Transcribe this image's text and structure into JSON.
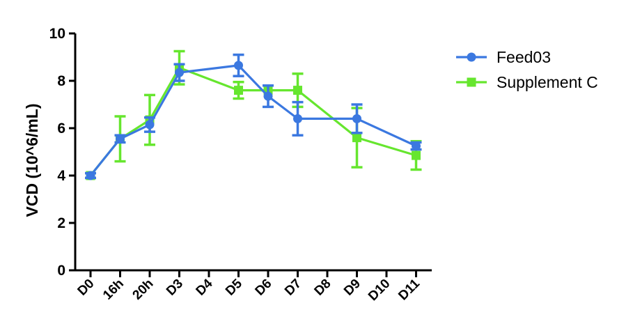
{
  "chart_data": {
    "type": "line",
    "xlabel": "",
    "ylabel": "VCD (10^6/mL)",
    "ylim": [
      0,
      10
    ],
    "yticks": [
      0,
      2,
      4,
      6,
      8,
      10
    ],
    "categories": [
      "D0",
      "16h",
      "20h",
      "D3",
      "D4",
      "D5",
      "D6",
      "D7",
      "D8",
      "D9",
      "D10",
      "D11"
    ],
    "legend_position": "top-right",
    "grid": false,
    "series": [
      {
        "name": "Supplement C",
        "color": "#66e62e",
        "marker": "square",
        "points": [
          {
            "category": "D0",
            "value": 4.0,
            "error": 0.1
          },
          {
            "category": "16h",
            "value": 5.55,
            "error": 0.95
          },
          {
            "category": "20h",
            "value": 6.35,
            "error": 1.05
          },
          {
            "category": "D3",
            "value": 8.55,
            "error": 0.7
          },
          {
            "category": "D5",
            "value": 7.6,
            "error": 0.35
          },
          {
            "category": "D6",
            "value": 7.6,
            "error": 0.0
          },
          {
            "category": "D7",
            "value": 7.6,
            "error": 0.7
          },
          {
            "category": "D9",
            "value": 5.6,
            "error": 1.25
          },
          {
            "category": "D11",
            "value": 4.85,
            "error": 0.6
          }
        ]
      },
      {
        "name": "Feed03",
        "color": "#3b78e0",
        "marker": "circle",
        "points": [
          {
            "category": "D0",
            "value": 4.0,
            "error": 0.1
          },
          {
            "category": "16h",
            "value": 5.55,
            "error": 0.15
          },
          {
            "category": "20h",
            "value": 6.15,
            "error": 0.3
          },
          {
            "category": "D3",
            "value": 8.35,
            "error": 0.35
          },
          {
            "category": "D5",
            "value": 8.65,
            "error": 0.45
          },
          {
            "category": "D6",
            "value": 7.35,
            "error": 0.45
          },
          {
            "category": "D7",
            "value": 6.4,
            "error": 0.7
          },
          {
            "category": "D9",
            "value": 6.4,
            "error": 0.6
          },
          {
            "category": "D11",
            "value": 5.25,
            "error": 0.15
          }
        ]
      }
    ],
    "legend_order": [
      "Feed03",
      "Supplement C"
    ]
  }
}
